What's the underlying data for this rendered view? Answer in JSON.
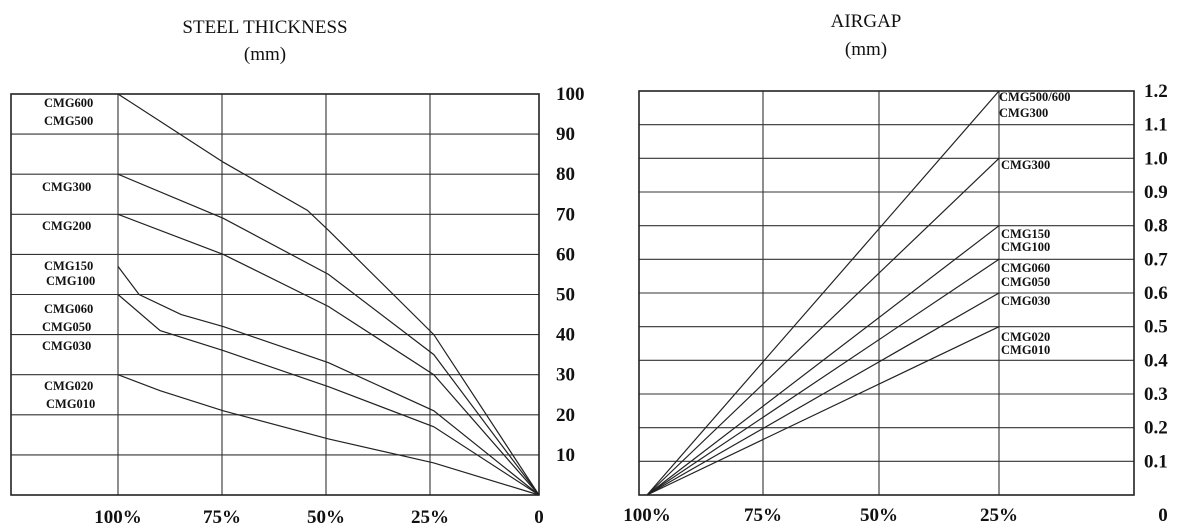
{
  "chart_data": [
    {
      "type": "line",
      "title": "STEEL THICKNESS",
      "subtitle": "(mm)",
      "x": {
        "tick_labels": [
          "100%",
          "75%",
          "50%",
          "25%",
          "0"
        ],
        "tick_values": [
          100,
          75,
          50,
          25,
          0
        ]
      },
      "y": {
        "ylim": [
          0,
          100
        ],
        "tick_labels": [
          "100",
          "90",
          "80",
          "70",
          "60",
          "50",
          "40",
          "30",
          "20",
          "10"
        ],
        "tick_values": [
          100,
          90,
          80,
          70,
          60,
          50,
          40,
          30,
          20,
          10
        ]
      },
      "grid": true,
      "series": [
        {
          "name": "CMG600 CMG500",
          "x": [
            100,
            75,
            55,
            50,
            25,
            0
          ],
          "y": [
            100,
            83,
            71,
            66,
            40,
            0
          ]
        },
        {
          "name": "CMG300",
          "x": [
            100,
            75,
            50,
            25,
            0
          ],
          "y": [
            80,
            69,
            55,
            35,
            0
          ]
        },
        {
          "name": "CMG200",
          "x": [
            100,
            75,
            50,
            25,
            0
          ],
          "y": [
            70,
            60,
            47,
            30,
            0
          ]
        },
        {
          "name": "CMG150 CMG100",
          "x": [
            100,
            95,
            85,
            75,
            50,
            25,
            0
          ],
          "y": [
            57,
            50,
            45,
            42,
            33,
            21,
            0
          ]
        },
        {
          "name": "CMG060 CMG050",
          "x": [
            100,
            90,
            75,
            50,
            25,
            0
          ],
          "y": [
            50,
            41,
            36,
            27,
            17,
            0
          ]
        },
        {
          "name": "CMG030",
          "x": [
            100,
            90,
            75,
            50,
            25,
            0
          ],
          "y": [
            30,
            26,
            21,
            14,
            8,
            0
          ]
        }
      ],
      "labels": {
        "cmg600": "CMG600",
        "cmg500": "CMG500",
        "cmg300": "CMG300",
        "cmg200": "CMG200",
        "cmg150": "CMG150",
        "cmg100": "CMG100",
        "cmg060": "CMG060",
        "cmg050": "CMG050",
        "cmg030": "CMG030",
        "cmg020": "CMG020",
        "cmg010": "CMG010"
      }
    },
    {
      "type": "line",
      "title": "AIRGAP",
      "subtitle": "(mm)",
      "x": {
        "tick_labels": [
          "100%",
          "75%",
          "50%",
          "25%",
          "0"
        ],
        "tick_values": [
          100,
          75,
          50,
          25,
          0
        ]
      },
      "y": {
        "ylim": [
          0,
          1.2
        ],
        "tick_labels": [
          "1.2",
          "1.1",
          "1.0",
          "0.9",
          "0.8",
          "0.7",
          "0.6",
          "0.5",
          "0.4",
          "0.3",
          "0.2",
          "0.1"
        ],
        "tick_values": [
          1.2,
          1.1,
          1.0,
          0.9,
          0.8,
          0.7,
          0.6,
          0.5,
          0.4,
          0.3,
          0.2,
          0.1
        ]
      },
      "grid": true,
      "series": [
        {
          "name": "CMG500/600 CMG300",
          "x": [
            100,
            25
          ],
          "y": [
            0,
            1.2
          ]
        },
        {
          "name": "CMG300",
          "x": [
            100,
            25
          ],
          "y": [
            0,
            1.0
          ]
        },
        {
          "name": "CMG150 CMG100",
          "x": [
            100,
            25
          ],
          "y": [
            0,
            0.8
          ]
        },
        {
          "name": "CMG060 CMG050",
          "x": [
            100,
            25
          ],
          "y": [
            0,
            0.7
          ]
        },
        {
          "name": "CMG030",
          "x": [
            100,
            25
          ],
          "y": [
            0,
            0.6
          ]
        },
        {
          "name": "CMG020 CMG010",
          "x": [
            100,
            25
          ],
          "y": [
            0,
            0.5
          ]
        }
      ],
      "labels": {
        "cmg500600": "CMG500/600",
        "cmg300a": "CMG300",
        "cmg300b": "CMG300",
        "cmg150": "CMG150",
        "cmg100": "CMG100",
        "cmg060": "CMG060",
        "cmg050": "CMG050",
        "cmg030": "CMG030",
        "cmg020": "CMG020",
        "cmg010": "CMG010"
      }
    }
  ]
}
